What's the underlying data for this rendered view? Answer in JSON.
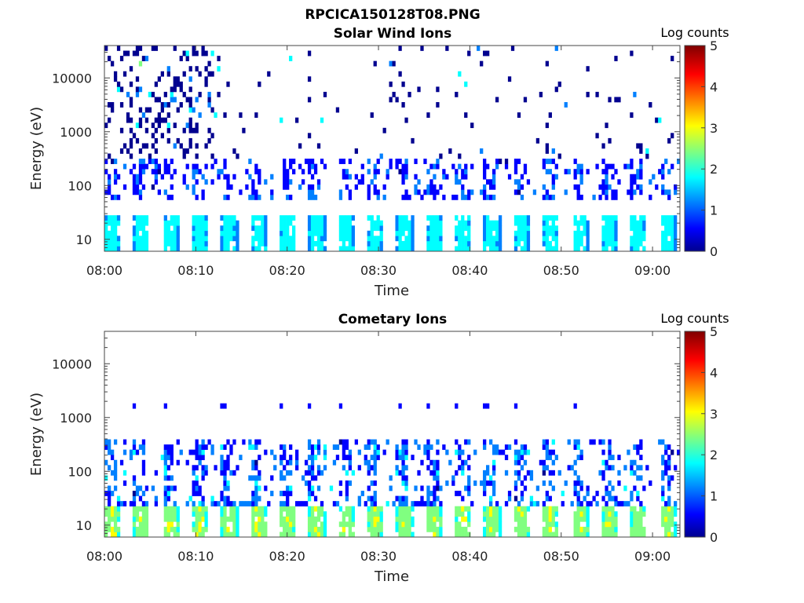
{
  "figure_title": "RPCICA150128T08.PNG",
  "colormap": [
    "#00008f",
    "#0000ff",
    "#0080ff",
    "#00ffff",
    "#80ff80",
    "#ffff00",
    "#ff8000",
    "#ff0000",
    "#800000"
  ],
  "chart_data": [
    {
      "type": "heatmap",
      "title": "Solar Wind Ions",
      "xlabel": "Time",
      "ylabel": "Energy (eV)",
      "x_range": [
        "08:00",
        "09:03"
      ],
      "y_scale": "log",
      "y_range": [
        6,
        40000
      ],
      "x_ticks": [
        "08:00",
        "08:10",
        "08:20",
        "08:30",
        "08:40",
        "08:50",
        "09:00"
      ],
      "y_ticks": [
        "10",
        "100",
        "1000",
        "10000"
      ],
      "colorbar": {
        "label": "Log counts",
        "range": [
          0,
          5
        ],
        "ticks": [
          "0",
          "1",
          "2",
          "3",
          "4",
          "5"
        ]
      },
      "structure": {
        "sweep_period_min": 3.2,
        "low_band_eV": [
          6,
          27
        ],
        "low_band_log_counts": [
          1.0,
          2.2
        ],
        "mid_band_eV": [
          60,
          300
        ],
        "scattered_max_eV": 40000
      }
    },
    {
      "type": "heatmap",
      "title": "Cometary Ions",
      "xlabel": "Time",
      "ylabel": "Energy (eV)",
      "x_range": [
        "08:00",
        "09:03"
      ],
      "y_scale": "log",
      "y_range": [
        6,
        40000
      ],
      "x_ticks": [
        "08:00",
        "08:10",
        "08:20",
        "08:30",
        "08:40",
        "08:50",
        "09:00"
      ],
      "y_ticks": [
        "10",
        "100",
        "1000",
        "10000"
      ],
      "colorbar": {
        "label": "Log counts",
        "range": [
          0,
          5
        ],
        "ticks": [
          "0",
          "1",
          "2",
          "3",
          "4",
          "5"
        ]
      },
      "structure": {
        "sweep_period_min": 3.2,
        "low_band_eV": [
          6,
          25
        ],
        "low_band_log_counts": [
          1.5,
          3.0
        ],
        "mid_band_eV": [
          30,
          400
        ],
        "line_eV": 1700
      }
    }
  ]
}
